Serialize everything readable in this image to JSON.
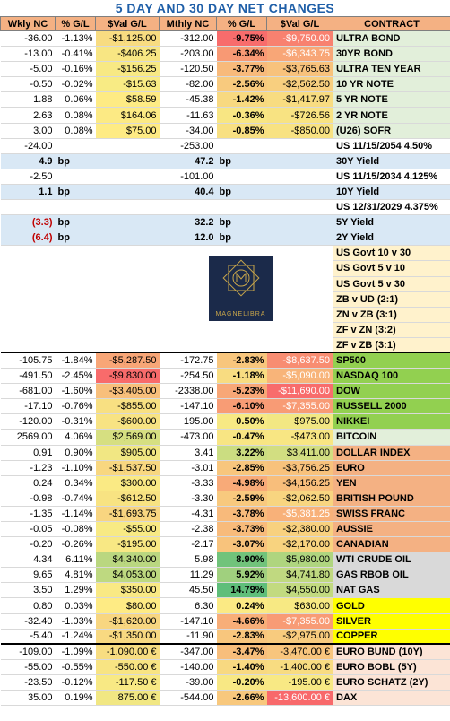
{
  "title": "5 DAY AND 30 DAY NET CHANGES",
  "headers": [
    "Wkly NC",
    "% G/L",
    "$Val G/L",
    "Mthly NC",
    "% G/L",
    "$Val G/L",
    "CONTRACT"
  ],
  "rates_rows": [
    {
      "w": "-36.00",
      "wp": "-1.13%",
      "wv": "-$1,125.00",
      "m": "-312.00",
      "mp": "-9.75%",
      "mv": "-$9,750.00",
      "c": "ULTRA BOND"
    },
    {
      "w": "-13.00",
      "wp": "-0.41%",
      "wv": "-$406.25",
      "m": "-203.00",
      "mp": "-6.34%",
      "mv": "-$6,343.75",
      "c": "30YR BOND"
    },
    {
      "w": "-5.00",
      "wp": "-0.16%",
      "wv": "-$156.25",
      "m": "-120.50",
      "mp": "-3.77%",
      "mv": "-$3,765.63",
      "c": "ULTRA TEN YEAR"
    },
    {
      "w": "-0.50",
      "wp": "-0.02%",
      "wv": "-$15.63",
      "m": "-82.00",
      "mp": "-2.56%",
      "mv": "-$2,562.50",
      "c": "10 YR NOTE"
    },
    {
      "w": "1.88",
      "wp": "0.06%",
      "wv": "$58.59",
      "m": "-45.38",
      "mp": "-1.42%",
      "mv": "-$1,417.97",
      "c": "5 YR NOTE"
    },
    {
      "w": "2.63",
      "wp": "0.08%",
      "wv": "$164.06",
      "m": "-11.63",
      "mp": "-0.36%",
      "mv": "-$726.56",
      "c": "2 YR NOTE"
    },
    {
      "w": "3.00",
      "wp": "0.08%",
      "wv": "$75.00",
      "m": "-34.00",
      "mp": "-0.85%",
      "mv": "-$850.00",
      "c": "(U26) SOFR"
    }
  ],
  "yield_rows": [
    {
      "w": "-24.00",
      "wu": "",
      "m": "-253.00",
      "mu": "",
      "c": "US 11/15/2054 4.50%",
      "blue": false
    },
    {
      "w": "4.9",
      "wu": "bp",
      "m": "47.2",
      "mu": "bp",
      "c": "30Y Yield",
      "blue": true
    },
    {
      "w": "-2.50",
      "wu": "",
      "m": "-101.00",
      "mu": "",
      "c": "US 11/15/2034 4.125%",
      "blue": false
    },
    {
      "w": "1.1",
      "wu": "bp",
      "m": "40.4",
      "mu": "bp",
      "c": "10Y Yield",
      "blue": true
    },
    {
      "w": "",
      "wu": "",
      "m": "",
      "mu": "",
      "c": "US 12/31/2029 4.375%",
      "blue": false
    },
    {
      "w": "(3.3)",
      "wu": "bp",
      "m": "32.2",
      "mu": "bp",
      "c": "5Y Yield",
      "blue": true
    },
    {
      "w": "(6.4)",
      "wu": "bp",
      "m": "12.0",
      "mu": "bp",
      "c": "2Y Yield",
      "blue": true
    }
  ],
  "spreads": [
    "US Govt 10 v 30",
    "US Govt 5 v 10",
    "US Govt 5 v 30",
    "ZB v UD (2:1)",
    "ZN v ZB (3:1)",
    "ZF v ZN (3:2)",
    "ZF v ZB (3:1)"
  ],
  "logo_text": "MAGNELIBRA",
  "other_rows": [
    {
      "w": "-105.75",
      "wp": "-1.84%",
      "wv": "-$5,287.50",
      "m": "-172.75",
      "mp": "-2.83%",
      "mv": "-$8,637.50",
      "c": "SP500",
      "cbg": "#92d050"
    },
    {
      "w": "-491.50",
      "wp": "-2.45%",
      "wv": "-$9,830.00",
      "m": "-254.50",
      "mp": "-1.18%",
      "mv": "-$5,090.00",
      "c": "NASDAQ 100",
      "cbg": "#92d050"
    },
    {
      "w": "-681.00",
      "wp": "-1.60%",
      "wv": "-$3,405.00",
      "m": "-2338.00",
      "mp": "-5.23%",
      "mv": "-$11,690.00",
      "c": "DOW",
      "cbg": "#92d050"
    },
    {
      "w": "-17.10",
      "wp": "-0.76%",
      "wv": "-$855.00",
      "m": "-147.10",
      "mp": "-6.10%",
      "mv": "-$7,355.00",
      "c": "RUSSELL 2000",
      "cbg": "#92d050"
    },
    {
      "w": "-120.00",
      "wp": "-0.31%",
      "wv": "-$600.00",
      "m": "195.00",
      "mp": "0.50%",
      "mv": "$975.00",
      "c": "NIKKEI",
      "cbg": "#92d050"
    },
    {
      "w": "2569.00",
      "wp": "4.06%",
      "wv": "$2,569.00",
      "m": "-473.00",
      "mp": "-0.47%",
      "mv": "-$473.00",
      "c": "BITCOIN",
      "cbg": "#e2efda"
    },
    {
      "w": "0.91",
      "wp": "0.90%",
      "wv": "$905.00",
      "m": "3.41",
      "mp": "3.22%",
      "mv": "$3,411.00",
      "c": "DOLLAR INDEX",
      "cbg": "#f4b183"
    },
    {
      "w": "-1.23",
      "wp": "-1.10%",
      "wv": "-$1,537.50",
      "m": "-3.01",
      "mp": "-2.85%",
      "mv": "-$3,756.25",
      "c": "EURO",
      "cbg": "#f4b183"
    },
    {
      "w": "0.24",
      "wp": "0.34%",
      "wv": "$300.00",
      "m": "-3.33",
      "mp": "-4.98%",
      "mv": "-$4,156.25",
      "c": "YEN",
      "cbg": "#f4b183"
    },
    {
      "w": "-0.98",
      "wp": "-0.74%",
      "wv": "-$612.50",
      "m": "-3.30",
      "mp": "-2.59%",
      "mv": "-$2,062.50",
      "c": "BRITISH POUND",
      "cbg": "#f4b183"
    },
    {
      "w": "-1.35",
      "wp": "-1.14%",
      "wv": "-$1,693.75",
      "m": "-4.31",
      "mp": "-3.78%",
      "mv": "-$5,381.25",
      "c": "SWISS FRANC",
      "cbg": "#f4b183"
    },
    {
      "w": "-0.05",
      "wp": "-0.08%",
      "wv": "-$55.00",
      "m": "-2.38",
      "mp": "-3.73%",
      "mv": "-$2,380.00",
      "c": "AUSSIE",
      "cbg": "#f4b183"
    },
    {
      "w": "-0.20",
      "wp": "-0.26%",
      "wv": "-$195.00",
      "m": "-2.17",
      "mp": "-3.07%",
      "mv": "-$2,170.00",
      "c": "CANADIAN",
      "cbg": "#f4b183"
    },
    {
      "w": "4.34",
      "wp": "6.11%",
      "wv": "$4,340.00",
      "m": "5.98",
      "mp": "8.90%",
      "mv": "$5,980.00",
      "c": "WTI CRUDE OIL",
      "cbg": "#d9d9d9"
    },
    {
      "w": "9.65",
      "wp": "4.81%",
      "wv": "$4,053.00",
      "m": "11.29",
      "mp": "5.92%",
      "mv": "$4,741.80",
      "c": "GAS RBOB OIL",
      "cbg": "#d9d9d9"
    },
    {
      "w": "3.50",
      "wp": "1.29%",
      "wv": "$350.00",
      "m": "45.50",
      "mp": "14.79%",
      "mv": "$4,550.00",
      "c": "NAT GAS",
      "cbg": "#d9d9d9"
    },
    {
      "w": "0.80",
      "wp": "0.03%",
      "wv": "$80.00",
      "m": "6.30",
      "mp": "0.24%",
      "mv": "$630.00",
      "c": "GOLD",
      "cbg": "#ffff00"
    },
    {
      "w": "-32.40",
      "wp": "-1.03%",
      "wv": "-$1,620.00",
      "m": "-147.10",
      "mp": "-4.66%",
      "mv": "-$7,355.00",
      "c": "SILVER",
      "cbg": "#ffff00"
    },
    {
      "w": "-5.40",
      "wp": "-1.24%",
      "wv": "-$1,350.00",
      "m": "-11.90",
      "mp": "-2.83%",
      "mv": "-$2,975.00",
      "c": "COPPER",
      "cbg": "#ffff00"
    }
  ],
  "euro_rows": [
    {
      "w": "-109.00",
      "wp": "-1.09%",
      "wv": "-1,090.00 €",
      "m": "-347.00",
      "mp": "-3.47%",
      "mv": "-3,470.00 €",
      "c": "EURO BUND (10Y)"
    },
    {
      "w": "-55.00",
      "wp": "-0.55%",
      "wv": "-550.00 €",
      "m": "-140.00",
      "mp": "-1.40%",
      "mv": "-1,400.00 €",
      "c": "EURO BOBL (5Y)"
    },
    {
      "w": "-23.50",
      "wp": "-0.12%",
      "wv": "-117.50 €",
      "m": "-39.00",
      "mp": "-0.20%",
      "mv": "-195.00 €",
      "c": "EURO SCHATZ (2Y)"
    },
    {
      "w": "35.00",
      "wp": "0.19%",
      "wv": "875.00 €",
      "m": "-544.00",
      "mp": "-2.66%",
      "mv": "-13,600.00 €",
      "c": "DAX"
    }
  ],
  "colors": {
    "rates_contract": "#e2efda",
    "yield_blue": "#d9e8f5",
    "spread_bg": "#fff2cc",
    "euro_contract": "#fce4d6",
    "neg_text": "#c00000"
  }
}
